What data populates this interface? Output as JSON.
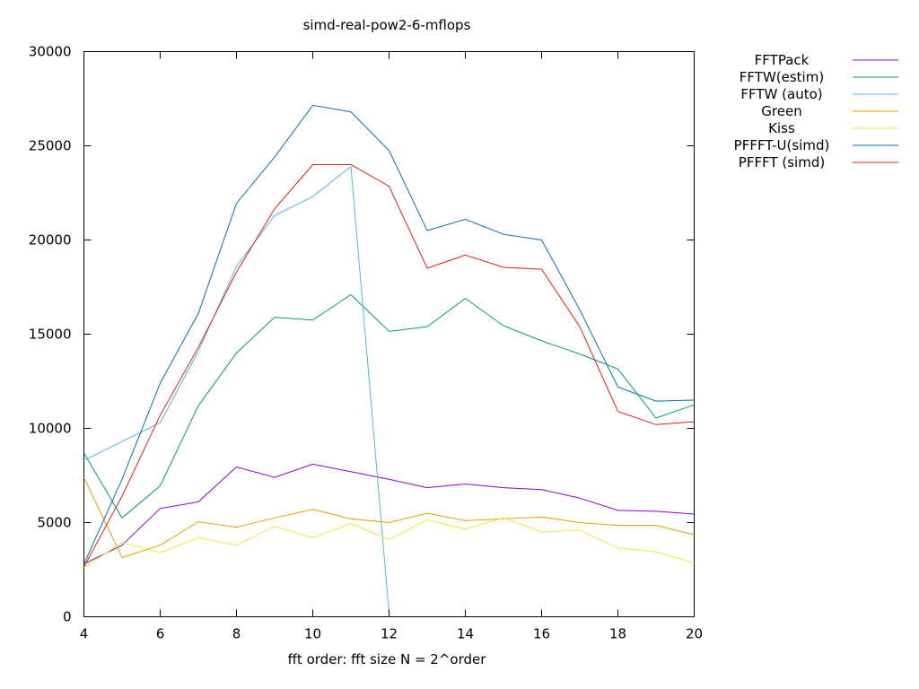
{
  "chart_data": {
    "type": "line",
    "title": "simd-real-pow2-6-mflops",
    "xlabel": "fft order: fft size N = 2^order",
    "ylabel": "",
    "xlim": [
      4,
      20
    ],
    "ylim": [
      0,
      30000
    ],
    "xticks": [
      4,
      6,
      8,
      10,
      12,
      14,
      16,
      18,
      20
    ],
    "yticks": [
      0,
      5000,
      10000,
      15000,
      20000,
      25000,
      30000
    ],
    "grid": false,
    "legend_position": "outside-top-right",
    "series": [
      {
        "name": "FFTPack",
        "color": "#9400d3",
        "x": [
          4,
          5,
          6,
          7,
          8,
          9,
          10,
          11,
          12,
          13,
          14,
          15,
          16,
          17,
          18,
          19,
          20
        ],
        "y": [
          2800,
          3800,
          5750,
          6100,
          7950,
          7400,
          8100,
          7700,
          7300,
          6850,
          7050,
          6850,
          6750,
          6300,
          5650,
          5600,
          5450
        ]
      },
      {
        "name": "FFTW(estim)",
        "color": "#009e73",
        "x": [
          4,
          5,
          6,
          7,
          8,
          9,
          10,
          11,
          12,
          13,
          14,
          15,
          16,
          17,
          18,
          19,
          20
        ],
        "y": [
          8700,
          5250,
          6950,
          11200,
          14000,
          15900,
          15750,
          17100,
          15150,
          15400,
          16900,
          15450,
          14650,
          13950,
          13150,
          10550,
          11250
        ]
      },
      {
        "name": "FFTW (auto)",
        "color": "#56b4e9",
        "x": [
          4,
          5,
          6,
          7,
          8,
          9,
          10,
          11,
          12
        ],
        "y": [
          8300,
          9300,
          10300,
          14100,
          18600,
          21300,
          22300,
          23900,
          200
        ]
      },
      {
        "name": "Green",
        "color": "#e69f00",
        "x": [
          4,
          5,
          6,
          7,
          8,
          9,
          10,
          11,
          12,
          13,
          14,
          15,
          16,
          17,
          18,
          19,
          20
        ],
        "y": [
          7400,
          3150,
          3800,
          5050,
          4750,
          5250,
          5700,
          5200,
          5000,
          5500,
          5100,
          5200,
          5300,
          5000,
          4850,
          4850,
          4350
        ]
      },
      {
        "name": "Kiss",
        "color": "#f0e442",
        "x": [
          4,
          5,
          6,
          7,
          8,
          9,
          10,
          11,
          12,
          13,
          14,
          15,
          16,
          17,
          18,
          19,
          20
        ],
        "y": [
          2600,
          3950,
          3400,
          4200,
          3800,
          4800,
          4200,
          4950,
          4100,
          5150,
          4650,
          5250,
          4500,
          4600,
          3650,
          3450,
          2850
        ]
      },
      {
        "name": "PFFFT-U(simd)",
        "color": "#0072b2",
        "x": [
          4,
          5,
          6,
          7,
          8,
          9,
          10,
          11,
          12,
          13,
          14,
          15,
          16,
          17,
          18,
          19,
          20
        ],
        "y": [
          2800,
          7300,
          12400,
          16100,
          21950,
          24400,
          27150,
          26800,
          24750,
          20500,
          21100,
          20300,
          20000,
          16300,
          12200,
          11450,
          11500
        ]
      },
      {
        "name": "PFFFT (simd)",
        "color": "#e51e10",
        "x": [
          4,
          5,
          6,
          7,
          8,
          9,
          10,
          11,
          12,
          13,
          14,
          15,
          16,
          17,
          18,
          19,
          20
        ],
        "y": [
          2650,
          6400,
          10700,
          14300,
          18300,
          21650,
          24000,
          24000,
          22850,
          18500,
          19200,
          18550,
          18450,
          15400,
          10900,
          10200,
          10350
        ]
      }
    ]
  }
}
